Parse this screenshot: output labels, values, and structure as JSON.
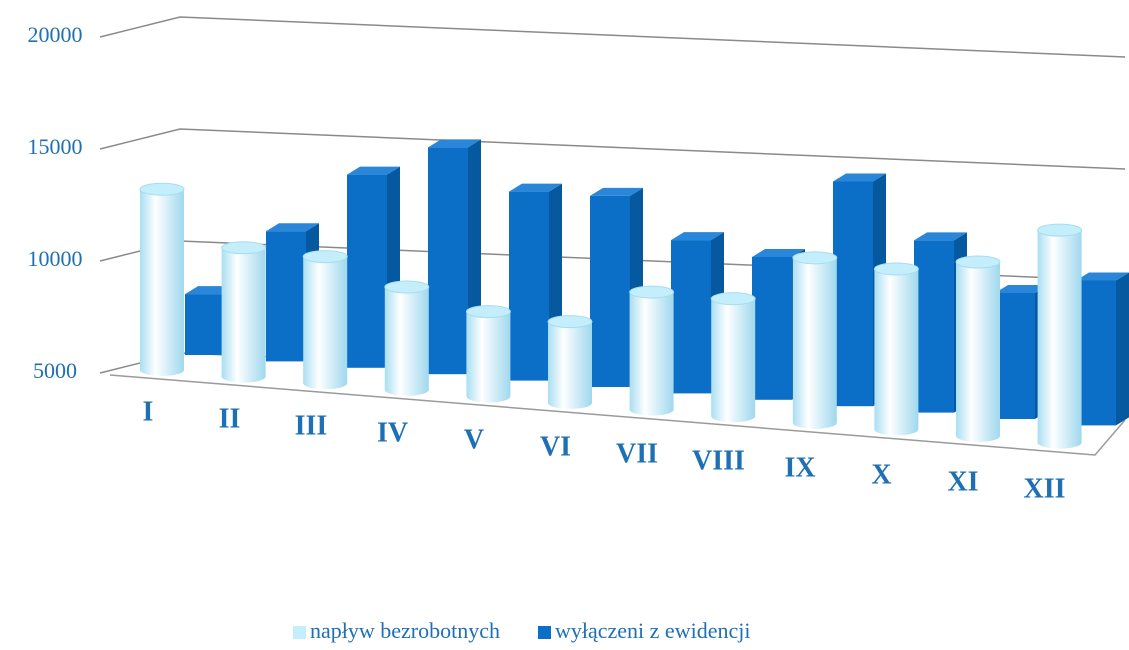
{
  "chart_data": {
    "type": "bar3d",
    "categories": [
      "I",
      "II",
      "III",
      "IV",
      "V",
      "VI",
      "VII",
      "VIII",
      "IX",
      "X",
      "XI",
      "XII"
    ],
    "series": [
      {
        "name": "napływ bezrobotnych",
        "color": "#c4eefc",
        "values": [
          13000,
          10700,
          10600,
          9550,
          8750,
          8600,
          10200,
          10200,
          12300,
          12100,
          12700,
          14400
        ]
      },
      {
        "name": "wyłączeni z ewidencji",
        "color": "#0b6fc7",
        "values": [
          7900,
          11200,
          14200,
          15800,
          14000,
          14100,
          12300,
          11800,
          15700,
          13200,
          11000,
          11900
        ]
      }
    ],
    "ylim": [
      5000,
      20000
    ],
    "yticks": [
      5000,
      10000,
      15000,
      20000
    ],
    "grid": true,
    "legend": "bottom"
  }
}
